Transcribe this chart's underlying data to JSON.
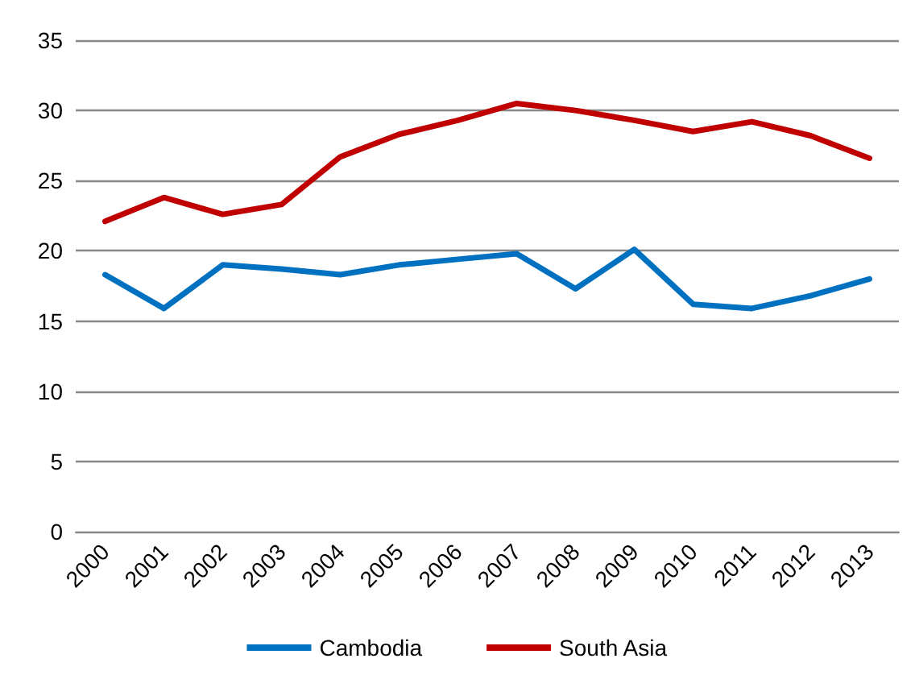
{
  "chart_data": {
    "type": "line",
    "categories": [
      "2000",
      "2001",
      "2002",
      "2003",
      "2004",
      "2005",
      "2006",
      "2007",
      "2008",
      "2009",
      "2010",
      "2011",
      "2012",
      "2013"
    ],
    "series": [
      {
        "name": "Cambodia",
        "color": "#0070c0",
        "values": [
          18.3,
          15.9,
          19.0,
          18.7,
          18.3,
          19.0,
          19.4,
          19.8,
          17.3,
          20.1,
          16.2,
          15.9,
          16.8,
          18.0
        ]
      },
      {
        "name": "South Asia",
        "color": "#c00000",
        "values": [
          22.1,
          23.8,
          22.6,
          23.3,
          26.7,
          28.3,
          29.3,
          30.5,
          30.0,
          29.3,
          28.5,
          29.2,
          28.2,
          26.6
        ]
      }
    ],
    "ylim": [
      0,
      35
    ],
    "yticks": [
      0,
      5,
      10,
      15,
      20,
      25,
      30,
      35
    ],
    "grid": "y",
    "legend": "bottom",
    "marker": "none",
    "line_style": "solid"
  }
}
